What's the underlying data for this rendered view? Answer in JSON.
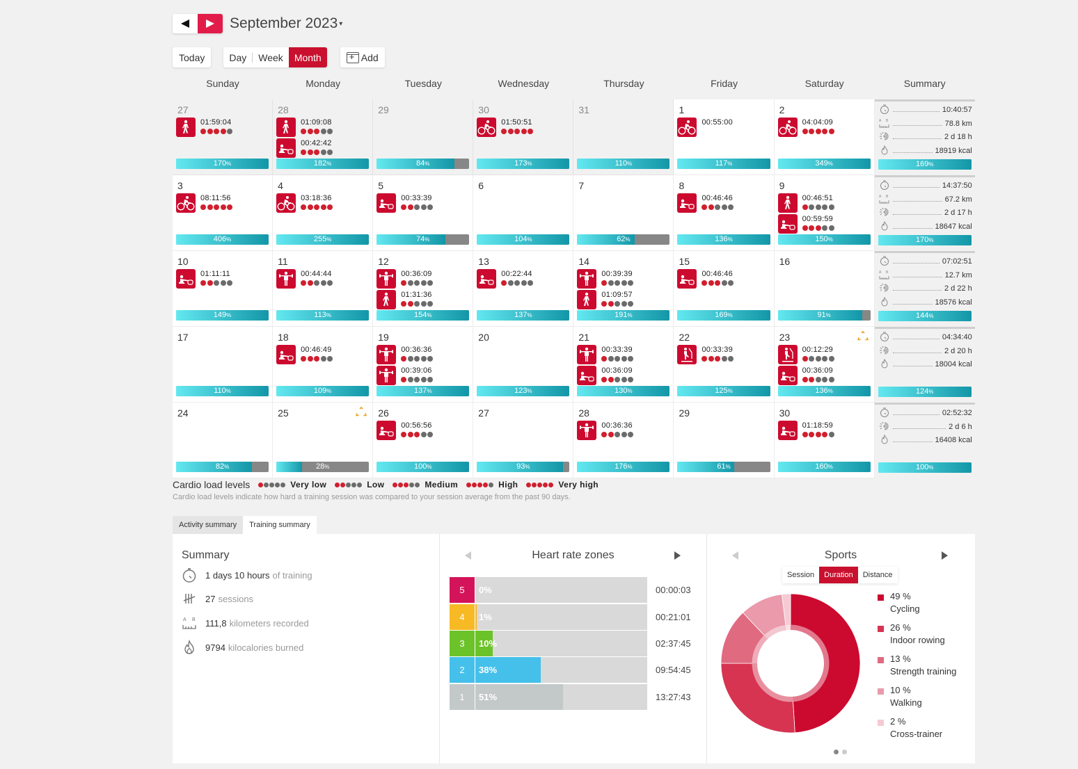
{
  "header": {
    "prev_label": "previous-month",
    "next_label": "next-month",
    "month_title": "September 2023",
    "caret": "▾"
  },
  "toolbar": {
    "today": "Today",
    "views": [
      "Day",
      "Week",
      "Month"
    ],
    "active_view": "Month",
    "add": "Add"
  },
  "weekdays": [
    "Sunday",
    "Monday",
    "Tuesday",
    "Wednesday",
    "Thursday",
    "Friday",
    "Saturday",
    "Summary"
  ],
  "weeks": [
    {
      "days": [
        {
          "num": "27",
          "other": true,
          "bar": 170,
          "sessions": [
            {
              "sport": "walking",
              "time": "01:59:04",
              "load": 4
            }
          ]
        },
        {
          "num": "28",
          "other": true,
          "bar": 182,
          "sessions": [
            {
              "sport": "walking",
              "time": "01:09:08",
              "load": 3
            },
            {
              "sport": "rowing",
              "time": "00:42:42",
              "load": 3
            }
          ]
        },
        {
          "num": "29",
          "other": true,
          "bar": 84,
          "sessions": []
        },
        {
          "num": "30",
          "other": true,
          "bar": 173,
          "sessions": [
            {
              "sport": "cycling",
              "time": "01:50:51",
              "load": 5
            }
          ]
        },
        {
          "num": "31",
          "other": true,
          "bar": 110,
          "sessions": []
        },
        {
          "num": "1",
          "bar": 117,
          "sessions": [
            {
              "sport": "cycling",
              "time": "00:55:00",
              "load": 0
            }
          ]
        },
        {
          "num": "2",
          "bar": 349,
          "sessions": [
            {
              "sport": "cycling",
              "time": "04:04:09",
              "load": 5
            }
          ]
        }
      ],
      "summary": {
        "duration": "10:40:57",
        "distance": "78.8 km",
        "activity": "2 d 18 h",
        "calories": "18919 kcal",
        "bar": 169
      }
    },
    {
      "days": [
        {
          "num": "3",
          "bar": 406,
          "sessions": [
            {
              "sport": "cycling",
              "time": "08:11:56",
              "load": 5
            }
          ]
        },
        {
          "num": "4",
          "bar": 255,
          "sessions": [
            {
              "sport": "cycling",
              "time": "03:18:36",
              "load": 5
            }
          ]
        },
        {
          "num": "5",
          "bar": 74,
          "sessions": [
            {
              "sport": "rowing",
              "time": "00:33:39",
              "load": 2
            }
          ]
        },
        {
          "num": "6",
          "bar": 104,
          "sessions": []
        },
        {
          "num": "7",
          "bar": 62,
          "sessions": []
        },
        {
          "num": "8",
          "bar": 136,
          "sessions": [
            {
              "sport": "rowing",
              "time": "00:46:46",
              "load": 2
            }
          ]
        },
        {
          "num": "9",
          "bar": 150,
          "sessions": [
            {
              "sport": "walking",
              "time": "00:46:51",
              "load": 1
            },
            {
              "sport": "rowing",
              "time": "00:59:59",
              "load": 3
            }
          ]
        }
      ],
      "summary": {
        "duration": "14:37:50",
        "distance": "67.2 km",
        "activity": "2 d 17 h",
        "calories": "18647 kcal",
        "bar": 170
      }
    },
    {
      "days": [
        {
          "num": "10",
          "bar": 149,
          "sessions": [
            {
              "sport": "rowing",
              "time": "01:11:11",
              "load": 2
            }
          ]
        },
        {
          "num": "11",
          "bar": 113,
          "sessions": [
            {
              "sport": "strength",
              "time": "00:44:44",
              "load": 2
            }
          ]
        },
        {
          "num": "12",
          "bar": 154,
          "sessions": [
            {
              "sport": "strength",
              "time": "00:36:09",
              "load": 1
            },
            {
              "sport": "walking",
              "time": "01:31:36",
              "load": 2
            }
          ]
        },
        {
          "num": "13",
          "bar": 137,
          "sessions": [
            {
              "sport": "rowing",
              "time": "00:22:44",
              "load": 1
            }
          ]
        },
        {
          "num": "14",
          "bar": 191,
          "sessions": [
            {
              "sport": "strength",
              "time": "00:39:39",
              "load": 1
            },
            {
              "sport": "walking",
              "time": "01:09:57",
              "load": 2
            }
          ]
        },
        {
          "num": "15",
          "bar": 169,
          "sessions": [
            {
              "sport": "rowing",
              "time": "00:46:46",
              "load": 3
            }
          ]
        },
        {
          "num": "16",
          "bar": 91,
          "sessions": []
        }
      ],
      "summary": {
        "duration": "07:02:51",
        "distance": "12.7 km",
        "activity": "2 d 22 h",
        "calories": "18576 kcal",
        "bar": 144
      }
    },
    {
      "days": [
        {
          "num": "17",
          "bar": 110,
          "sessions": []
        },
        {
          "num": "18",
          "bar": 109,
          "sessions": [
            {
              "sport": "rowing",
              "time": "00:46:49",
              "load": 3
            }
          ]
        },
        {
          "num": "19",
          "bar": 137,
          "sessions": [
            {
              "sport": "strength",
              "time": "00:36:36",
              "load": 1
            },
            {
              "sport": "strength",
              "time": "00:39:06",
              "load": 1
            }
          ]
        },
        {
          "num": "20",
          "bar": 123,
          "sessions": []
        },
        {
          "num": "21",
          "bar": 130,
          "sessions": [
            {
              "sport": "strength",
              "time": "00:33:39",
              "load": 1
            },
            {
              "sport": "rowing",
              "time": "00:36:09",
              "load": 2
            }
          ]
        },
        {
          "num": "22",
          "bar": 125,
          "sessions": [
            {
              "sport": "crosstrainer",
              "time": "00:33:39",
              "load": 3
            }
          ]
        },
        {
          "num": "23",
          "bar": 136,
          "warn": true,
          "sessions": [
            {
              "sport": "crosstrainer",
              "time": "00:12:29",
              "load": 1
            },
            {
              "sport": "rowing",
              "time": "00:36:09",
              "load": 2
            }
          ]
        }
      ],
      "summary": {
        "duration": "04:34:40",
        "activity": "2 d 20 h",
        "calories": "18004 kcal",
        "bar": 124
      }
    },
    {
      "days": [
        {
          "num": "24",
          "bar": 82,
          "sessions": []
        },
        {
          "num": "25",
          "bar": 28,
          "warn": true,
          "sessions": []
        },
        {
          "num": "26",
          "bar": 100,
          "sessions": [
            {
              "sport": "rowing",
              "time": "00:56:56",
              "load": 3
            }
          ]
        },
        {
          "num": "27",
          "bar": 93,
          "sessions": []
        },
        {
          "num": "28",
          "bar": 176,
          "sessions": [
            {
              "sport": "strength",
              "time": "00:36:36",
              "load": 2
            }
          ]
        },
        {
          "num": "29",
          "bar": 61,
          "sessions": []
        },
        {
          "num": "30",
          "bar": 160,
          "sessions": [
            {
              "sport": "rowing",
              "time": "01:18:59",
              "load": 4
            }
          ]
        }
      ],
      "summary": {
        "duration": "02:52:32",
        "activity": "2 d 6 h",
        "calories": "16408 kcal",
        "bar": 100
      }
    }
  ],
  "pct_suffix": "%",
  "legend": {
    "title": "Cardio load levels",
    "levels": [
      {
        "label": "Very low",
        "dots": 1
      },
      {
        "label": "Low",
        "dots": 2
      },
      {
        "label": "Medium",
        "dots": 3
      },
      {
        "label": "High",
        "dots": 4
      },
      {
        "label": "Very high",
        "dots": 5
      }
    ],
    "note": "Cardio load levels indicate how hard a training session was compared to your session average from the past 90 days."
  },
  "tabs": [
    "Activity summary",
    "Training summary"
  ],
  "active_tab": "Training summary",
  "summary_panel": {
    "title": "Summary",
    "items": [
      {
        "icon": "stopwatch-icon",
        "strong": "1 days 10 hours",
        "weak": "of training"
      },
      {
        "icon": "tally-icon",
        "strong": "27",
        "weak": "sessions"
      },
      {
        "icon": "distance-icon",
        "strong": "111,8",
        "weak": "kilometers recorded"
      },
      {
        "icon": "flame-icon",
        "strong": "9794",
        "weak": "kilocalories burned"
      }
    ]
  },
  "heart_rate": {
    "title": "Heart rate zones",
    "zones": [
      {
        "zone": "5",
        "pct": 0,
        "label": "0%",
        "time": "00:00:03",
        "color": "#d4145a",
        "fill": "#d4145a"
      },
      {
        "zone": "4",
        "pct": 1,
        "label": "1%",
        "time": "00:21:01",
        "color": "#f7b924",
        "fill": "#f7b924"
      },
      {
        "zone": "3",
        "pct": 10,
        "label": "10%",
        "time": "02:37:45",
        "color": "#6cc329",
        "fill": "#6cc329"
      },
      {
        "zone": "2",
        "pct": 38,
        "label": "38%",
        "time": "09:54:45",
        "color": "#45c0ea",
        "fill": "#45c0ea"
      },
      {
        "zone": "1",
        "pct": 51,
        "label": "51%",
        "time": "13:27:43",
        "color": "#c3c8c9",
        "fill": "#c3c8c9"
      }
    ]
  },
  "sports": {
    "title": "Sports",
    "modes": [
      "Session",
      "Duration",
      "Distance"
    ],
    "active_mode": "Duration",
    "items": [
      {
        "pct": 49,
        "label": "49 %",
        "name": "Cycling",
        "color": "#cc0a2f"
      },
      {
        "pct": 26,
        "label": "26 %",
        "name": "Indoor rowing",
        "color": "#d63451"
      },
      {
        "pct": 13,
        "label": "13 %",
        "name": "Strength training",
        "color": "#e06a80"
      },
      {
        "pct": 10,
        "label": "10 %",
        "name": "Walking",
        "color": "#ea9aaa"
      },
      {
        "pct": 2,
        "label": "2 %",
        "name": "Cross-trainer",
        "color": "#f5cad3"
      }
    ]
  },
  "chart_data": [
    {
      "type": "bar",
      "title": "Heart rate zones",
      "categories": [
        "5",
        "4",
        "3",
        "2",
        "1"
      ],
      "values": [
        0,
        1,
        10,
        38,
        51
      ],
      "times": [
        "00:00:03",
        "00:21:01",
        "02:37:45",
        "09:54:45",
        "13:27:43"
      ],
      "xlabel": "",
      "ylabel": "",
      "ylim": [
        0,
        100
      ]
    },
    {
      "type": "pie",
      "title": "Sports",
      "categories": [
        "Cycling",
        "Indoor rowing",
        "Strength training",
        "Walking",
        "Cross-trainer"
      ],
      "values": [
        49,
        26,
        13,
        10,
        2
      ]
    }
  ]
}
